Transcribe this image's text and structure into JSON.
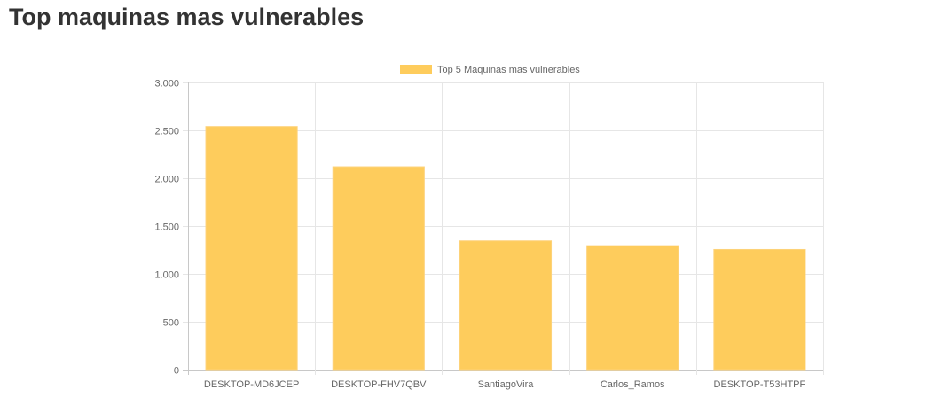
{
  "page": {
    "title": "Top maquinas mas vulnerables"
  },
  "chart_data": {
    "type": "bar",
    "title": "",
    "xlabel": "",
    "ylabel": "",
    "categories": [
      "DESKTOP-MD6JCEP",
      "DESKTOP-FHV7QBV",
      "SantiagoVira",
      "Carlos_Ramos",
      "DESKTOP-T53HTPF"
    ],
    "series": [
      {
        "name": "Top 5 Maquinas mas vulnerables",
        "values": [
          2540,
          2120,
          1345,
          1295,
          1255
        ],
        "color": "#fecc5c"
      }
    ],
    "ylim": [
      0,
      3000
    ],
    "yticks": [
      0,
      500,
      1000,
      1500,
      2000,
      2500,
      3000
    ],
    "ytick_labels": [
      "0",
      "500",
      "1.000",
      "1.500",
      "2.000",
      "2.500",
      "3.000"
    ],
    "grid": true,
    "legend_position": "top-center"
  }
}
